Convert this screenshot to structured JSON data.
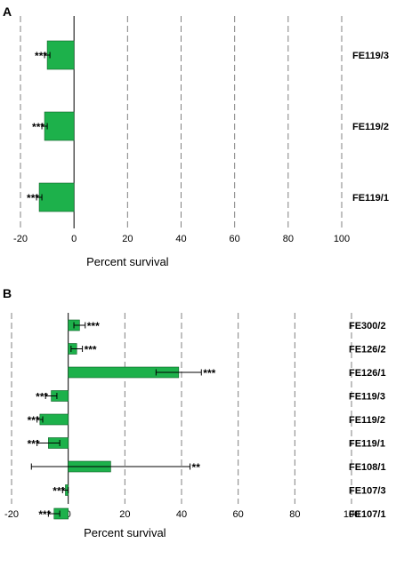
{
  "colors": {
    "bar": "#1db14b",
    "bar_edge": "#0b5e23",
    "grid": "#808080",
    "text": "#000000"
  },
  "chart_data": [
    {
      "panel": "A",
      "type": "bar",
      "orientation": "horizontal",
      "xlabel": "Percent survival",
      "xlim": [
        -20,
        100
      ],
      "xticks": [
        -20,
        0,
        20,
        40,
        60,
        80,
        100
      ],
      "grid": "vertical dashed",
      "categories": [
        "FE119/3",
        "FE119/2",
        "FE119/1"
      ],
      "values": [
        -10,
        -11,
        -13
      ],
      "errors": [
        1,
        1,
        1
      ],
      "significance": [
        "***",
        "***",
        "***"
      ]
    },
    {
      "panel": "B",
      "type": "bar",
      "orientation": "horizontal",
      "xlabel": "Percent survival",
      "xlim": [
        -20,
        100
      ],
      "xticks": [
        -20,
        0,
        20,
        40,
        60,
        80,
        100
      ],
      "grid": "vertical dashed",
      "categories": [
        "FE300/2",
        "FE126/2",
        "FE126/1",
        "FE119/3",
        "FE119/2",
        "FE119/1",
        "FE108/1",
        "FE107/3",
        "FE107/1"
      ],
      "values": [
        4,
        3,
        39,
        -6,
        -10,
        -7,
        15,
        -1,
        -5
      ],
      "errors": [
        2,
        2,
        8,
        2,
        1,
        4,
        28,
        1,
        2
      ],
      "significance": [
        "***",
        "***",
        "***",
        "***",
        "***",
        "***",
        "**",
        "***",
        "***"
      ]
    }
  ]
}
